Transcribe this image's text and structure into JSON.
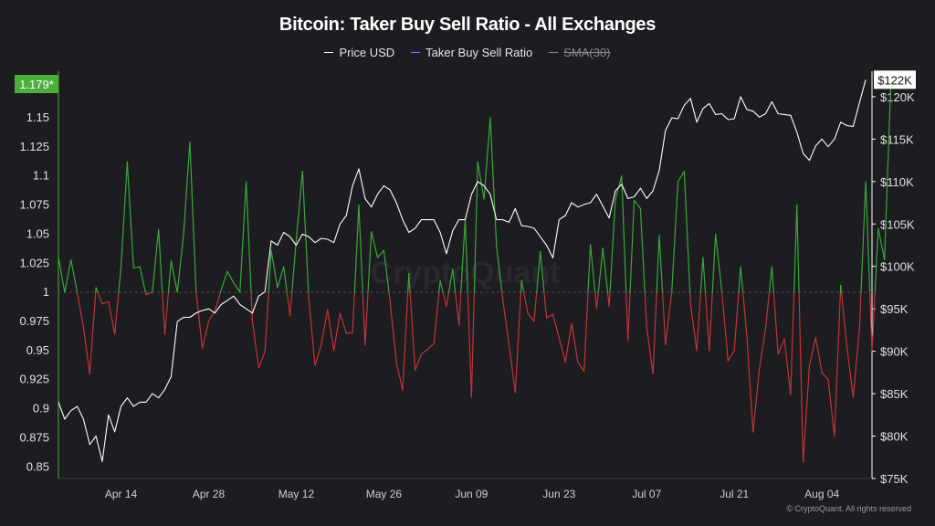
{
  "chart_data": {
    "type": "line",
    "title": "Bitcoin: Taker Buy Sell Ratio - All Exchanges",
    "legend": {
      "price": "Price USD",
      "ratio": "Taker Buy Sell Ratio",
      "sma": "SMA(30)"
    },
    "colors": {
      "price": "#ffffff",
      "ratio_legend": "#7b7bff",
      "ratio_up": "#3aa83a",
      "ratio_down": "#c23535",
      "sma": "#8a8a8e",
      "left_badge": "#4caf3b",
      "background": "#1c1c21"
    },
    "left_axis": {
      "min": 0.84,
      "max": 1.19,
      "ticks": [
        0.85,
        0.875,
        0.9,
        0.925,
        0.95,
        0.975,
        1,
        1.025,
        1.05,
        1.075,
        1.1,
        1.125,
        1.15
      ],
      "tick_labels": [
        "0.85",
        "0.875",
        "0.9",
        "0.925",
        "0.95",
        "0.975",
        "1",
        "1.025",
        "1.05",
        "1.075",
        "1.1",
        "1.125",
        "1.15"
      ]
    },
    "right_axis": {
      "min": 75000,
      "max": 123000,
      "ticks": [
        75000,
        80000,
        85000,
        90000,
        95000,
        100000,
        105000,
        110000,
        115000,
        120000
      ],
      "tick_labels": [
        "$75K",
        "$80K",
        "$85K",
        "$90K",
        "$95K",
        "$100K",
        "$105K",
        "$110K",
        "$115K",
        "$120K"
      ]
    },
    "x_axis": {
      "start": "2025-04-04",
      "end": "2025-08-12",
      "ticks": [
        "2025-04-14",
        "2025-04-28",
        "2025-05-12",
        "2025-05-26",
        "2025-06-09",
        "2025-06-23",
        "2025-07-07",
        "2025-07-21",
        "2025-08-04"
      ],
      "tick_labels": [
        "Apr 14",
        "Apr 28",
        "May 12",
        "May 26",
        "Jun 09",
        "Jun 23",
        "Jul 07",
        "Jul 21",
        "Aug 04"
      ]
    },
    "current_ratio_label": "1.179*",
    "current_price_label": "$122K",
    "reference_line": 1,
    "watermark": "CryptoQuant",
    "credit": "© CryptoQuant. All rights reserved",
    "ratio_series": [
      [
        "2025-04-04",
        1.03
      ],
      [
        "2025-04-05",
        1.0
      ],
      [
        "2025-04-06",
        1.028
      ],
      [
        "2025-04-07",
        1.0
      ],
      [
        "2025-04-08",
        0.97
      ],
      [
        "2025-04-09",
        0.93
      ],
      [
        "2025-04-10",
        1.004
      ],
      [
        "2025-04-11",
        0.99
      ],
      [
        "2025-04-12",
        0.992
      ],
      [
        "2025-04-13",
        0.964
      ],
      [
        "2025-04-14",
        1.022
      ],
      [
        "2025-04-15",
        1.112
      ],
      [
        "2025-04-16",
        1.021
      ],
      [
        "2025-04-17",
        1.022
      ],
      [
        "2025-04-18",
        0.998
      ],
      [
        "2025-04-19",
        1.0
      ],
      [
        "2025-04-20",
        1.054
      ],
      [
        "2025-04-21",
        0.964
      ],
      [
        "2025-04-22",
        1.027
      ],
      [
        "2025-04-23",
        1.0
      ],
      [
        "2025-04-24",
        1.05
      ],
      [
        "2025-04-25",
        1.129
      ],
      [
        "2025-04-26",
        1.0
      ],
      [
        "2025-04-27",
        0.952
      ],
      [
        "2025-04-28",
        0.975
      ],
      [
        "2025-04-29",
        0.984
      ],
      [
        "2025-04-30",
        1.002
      ],
      [
        "2025-05-01",
        1.018
      ],
      [
        "2025-05-02",
        1.008
      ],
      [
        "2025-05-03",
        1.0
      ],
      [
        "2025-05-04",
        1.095
      ],
      [
        "2025-05-05",
        0.975
      ],
      [
        "2025-05-06",
        0.935
      ],
      [
        "2025-05-07",
        0.949
      ],
      [
        "2025-05-08",
        1.036
      ],
      [
        "2025-05-09",
        1.004
      ],
      [
        "2025-05-10",
        1.022
      ],
      [
        "2025-05-11",
        0.98
      ],
      [
        "2025-05-12",
        1.045
      ],
      [
        "2025-05-13",
        1.104
      ],
      [
        "2025-05-14",
        0.995
      ],
      [
        "2025-05-15",
        0.937
      ],
      [
        "2025-05-16",
        0.955
      ],
      [
        "2025-05-17",
        0.985
      ],
      [
        "2025-05-18",
        0.95
      ],
      [
        "2025-05-19",
        0.982
      ],
      [
        "2025-05-20",
        0.965
      ],
      [
        "2025-05-21",
        0.965
      ],
      [
        "2025-05-22",
        1.075
      ],
      [
        "2025-05-23",
        0.955
      ],
      [
        "2025-05-24",
        1.052
      ],
      [
        "2025-05-25",
        1.03
      ],
      [
        "2025-05-26",
        1.036
      ],
      [
        "2025-05-27",
        0.992
      ],
      [
        "2025-05-28",
        0.94
      ],
      [
        "2025-05-29",
        0.916
      ],
      [
        "2025-05-30",
        1.016
      ],
      [
        "2025-05-31",
        0.933
      ],
      [
        "2025-06-01",
        0.947
      ],
      [
        "2025-06-02",
        0.951
      ],
      [
        "2025-06-03",
        0.956
      ],
      [
        "2025-06-04",
        1.01
      ],
      [
        "2025-06-05",
        0.988
      ],
      [
        "2025-06-06",
        1.02
      ],
      [
        "2025-06-07",
        0.972
      ],
      [
        "2025-06-08",
        1.063
      ],
      [
        "2025-06-09",
        0.91
      ],
      [
        "2025-06-10",
        1.112
      ],
      [
        "2025-06-11",
        1.08
      ],
      [
        "2025-06-12",
        1.15
      ],
      [
        "2025-06-13",
        1.04
      ],
      [
        "2025-06-14",
        0.994
      ],
      [
        "2025-06-15",
        0.955
      ],
      [
        "2025-06-16",
        0.914
      ],
      [
        "2025-06-17",
        1.01
      ],
      [
        "2025-06-18",
        0.982
      ],
      [
        "2025-06-19",
        0.975
      ],
      [
        "2025-06-20",
        1.035
      ],
      [
        "2025-06-21",
        0.978
      ],
      [
        "2025-06-22",
        0.981
      ],
      [
        "2025-06-23",
        0.961
      ],
      [
        "2025-06-24",
        0.94
      ],
      [
        "2025-06-25",
        0.973
      ],
      [
        "2025-06-26",
        0.94
      ],
      [
        "2025-06-27",
        0.932
      ],
      [
        "2025-06-28",
        1.041
      ],
      [
        "2025-06-29",
        0.986
      ],
      [
        "2025-06-30",
        1.038
      ],
      [
        "2025-07-01",
        0.988
      ],
      [
        "2025-07-02",
        1.08
      ],
      [
        "2025-07-03",
        1.1
      ],
      [
        "2025-07-04",
        0.959
      ],
      [
        "2025-07-05",
        1.079
      ],
      [
        "2025-07-06",
        1.072
      ],
      [
        "2025-07-07",
        0.97
      ],
      [
        "2025-07-08",
        0.93
      ],
      [
        "2025-07-09",
        1.049
      ],
      [
        "2025-07-10",
        0.955
      ],
      [
        "2025-07-11",
        1.0
      ],
      [
        "2025-07-12",
        1.095
      ],
      [
        "2025-07-13",
        1.104
      ],
      [
        "2025-07-14",
        0.99
      ],
      [
        "2025-07-15",
        0.95
      ],
      [
        "2025-07-16",
        1.03
      ],
      [
        "2025-07-17",
        0.95
      ],
      [
        "2025-07-18",
        1.05
      ],
      [
        "2025-07-19",
        1.001
      ],
      [
        "2025-07-20",
        0.941
      ],
      [
        "2025-07-21",
        0.95
      ],
      [
        "2025-07-22",
        1.022
      ],
      [
        "2025-07-23",
        0.963
      ],
      [
        "2025-07-24",
        0.88
      ],
      [
        "2025-07-25",
        0.934
      ],
      [
        "2025-07-26",
        0.969
      ],
      [
        "2025-07-27",
        1.022
      ],
      [
        "2025-07-28",
        0.947
      ],
      [
        "2025-07-29",
        0.96
      ],
      [
        "2025-07-30",
        0.912
      ],
      [
        "2025-07-31",
        1.075
      ],
      [
        "2025-08-01",
        0.854
      ],
      [
        "2025-08-02",
        0.937
      ],
      [
        "2025-08-03",
        0.961
      ],
      [
        "2025-08-04",
        0.931
      ],
      [
        "2025-08-05",
        0.925
      ],
      [
        "2025-08-06",
        0.876
      ],
      [
        "2025-08-07",
        1.006
      ],
      [
        "2025-08-08",
        0.953
      ],
      [
        "2025-08-09",
        0.91
      ],
      [
        "2025-08-10",
        0.969
      ],
      [
        "2025-08-11",
        1.095
      ],
      [
        "2025-08-12",
        0.95
      ],
      [
        "2025-08-13",
        1.055
      ],
      [
        "2025-08-14",
        1.028
      ],
      [
        "2025-08-15",
        1.179
      ]
    ],
    "price_series": [
      [
        "2025-04-04",
        84000
      ],
      [
        "2025-04-05",
        82000
      ],
      [
        "2025-04-06",
        83000
      ],
      [
        "2025-04-07",
        83500
      ],
      [
        "2025-04-08",
        82000
      ],
      [
        "2025-04-09",
        79000
      ],
      [
        "2025-04-10",
        80000
      ],
      [
        "2025-04-11",
        77000
      ],
      [
        "2025-04-12",
        82500
      ],
      [
        "2025-04-13",
        80500
      ],
      [
        "2025-04-14",
        83500
      ],
      [
        "2025-04-15",
        84500
      ],
      [
        "2025-04-16",
        83500
      ],
      [
        "2025-04-17",
        84000
      ],
      [
        "2025-04-18",
        84000
      ],
      [
        "2025-04-19",
        85000
      ],
      [
        "2025-04-20",
        84500
      ],
      [
        "2025-04-21",
        85500
      ],
      [
        "2025-04-22",
        87000
      ],
      [
        "2025-04-23",
        93500
      ],
      [
        "2025-04-24",
        94000
      ],
      [
        "2025-04-25",
        94000
      ],
      [
        "2025-04-26",
        94500
      ],
      [
        "2025-04-27",
        94800
      ],
      [
        "2025-04-28",
        95000
      ],
      [
        "2025-04-29",
        94500
      ],
      [
        "2025-04-30",
        95500
      ],
      [
        "2025-05-01",
        96000
      ],
      [
        "2025-05-02",
        96500
      ],
      [
        "2025-05-03",
        95500
      ],
      [
        "2025-05-04",
        95000
      ],
      [
        "2025-05-05",
        94500
      ],
      [
        "2025-05-06",
        96500
      ],
      [
        "2025-05-07",
        97000
      ],
      [
        "2025-05-08",
        103000
      ],
      [
        "2025-05-09",
        102500
      ],
      [
        "2025-05-10",
        104000
      ],
      [
        "2025-05-11",
        103500
      ],
      [
        "2025-05-12",
        102500
      ],
      [
        "2025-05-13",
        103800
      ],
      [
        "2025-05-14",
        103500
      ],
      [
        "2025-05-15",
        102800
      ],
      [
        "2025-05-16",
        103300
      ],
      [
        "2025-05-17",
        103200
      ],
      [
        "2025-05-18",
        102800
      ],
      [
        "2025-05-19",
        105000
      ],
      [
        "2025-05-20",
        106000
      ],
      [
        "2025-05-21",
        109500
      ],
      [
        "2025-05-22",
        111500
      ],
      [
        "2025-05-23",
        108000
      ],
      [
        "2025-05-24",
        107000
      ],
      [
        "2025-05-25",
        108500
      ],
      [
        "2025-05-26",
        109500
      ],
      [
        "2025-05-27",
        109000
      ],
      [
        "2025-05-28",
        107500
      ],
      [
        "2025-05-29",
        105500
      ],
      [
        "2025-05-30",
        104000
      ],
      [
        "2025-05-31",
        104500
      ],
      [
        "2025-06-01",
        105500
      ],
      [
        "2025-06-02",
        105500
      ],
      [
        "2025-06-03",
        105500
      ],
      [
        "2025-06-04",
        104000
      ],
      [
        "2025-06-05",
        101500
      ],
      [
        "2025-06-06",
        104200
      ],
      [
        "2025-06-07",
        105500
      ],
      [
        "2025-06-08",
        105500
      ],
      [
        "2025-06-09",
        108500
      ],
      [
        "2025-06-10",
        110000
      ],
      [
        "2025-06-11",
        109500
      ],
      [
        "2025-06-12",
        108500
      ],
      [
        "2025-06-13",
        105500
      ],
      [
        "2025-06-14",
        105500
      ],
      [
        "2025-06-15",
        105200
      ],
      [
        "2025-06-16",
        106800
      ],
      [
        "2025-06-17",
        104800
      ],
      [
        "2025-06-18",
        104700
      ],
      [
        "2025-06-19",
        104500
      ],
      [
        "2025-06-20",
        103500
      ],
      [
        "2025-06-21",
        102500
      ],
      [
        "2025-06-22",
        101000
      ],
      [
        "2025-06-23",
        105500
      ],
      [
        "2025-06-24",
        106000
      ],
      [
        "2025-06-25",
        107500
      ],
      [
        "2025-06-26",
        107000
      ],
      [
        "2025-06-27",
        107300
      ],
      [
        "2025-06-28",
        107500
      ],
      [
        "2025-06-29",
        108500
      ],
      [
        "2025-06-30",
        107100
      ],
      [
        "2025-07-01",
        105700
      ],
      [
        "2025-07-02",
        108900
      ],
      [
        "2025-07-03",
        109700
      ],
      [
        "2025-07-04",
        108000
      ],
      [
        "2025-07-05",
        108200
      ],
      [
        "2025-07-06",
        109200
      ],
      [
        "2025-07-07",
        108000
      ],
      [
        "2025-07-08",
        108900
      ],
      [
        "2025-07-09",
        111300
      ],
      [
        "2025-07-10",
        116000
      ],
      [
        "2025-07-11",
        117500
      ],
      [
        "2025-07-12",
        117400
      ],
      [
        "2025-07-13",
        119000
      ],
      [
        "2025-07-14",
        119800
      ],
      [
        "2025-07-15",
        117000
      ],
      [
        "2025-07-16",
        118600
      ],
      [
        "2025-07-17",
        119200
      ],
      [
        "2025-07-18",
        117900
      ],
      [
        "2025-07-19",
        118000
      ],
      [
        "2025-07-20",
        117300
      ],
      [
        "2025-07-21",
        117400
      ],
      [
        "2025-07-22",
        120000
      ],
      [
        "2025-07-23",
        118500
      ],
      [
        "2025-07-24",
        118300
      ],
      [
        "2025-07-25",
        117600
      ],
      [
        "2025-07-26",
        118000
      ],
      [
        "2025-07-27",
        119400
      ],
      [
        "2025-07-28",
        118000
      ],
      [
        "2025-07-29",
        117900
      ],
      [
        "2025-07-30",
        117800
      ],
      [
        "2025-07-31",
        115800
      ],
      [
        "2025-08-01",
        113300
      ],
      [
        "2025-08-02",
        112500
      ],
      [
        "2025-08-03",
        114200
      ],
      [
        "2025-08-04",
        115000
      ],
      [
        "2025-08-05",
        114100
      ],
      [
        "2025-08-06",
        115000
      ],
      [
        "2025-08-07",
        117000
      ],
      [
        "2025-08-08",
        116600
      ],
      [
        "2025-08-09",
        116500
      ],
      [
        "2025-08-10",
        119300
      ],
      [
        "2025-08-11",
        122000
      ]
    ]
  }
}
